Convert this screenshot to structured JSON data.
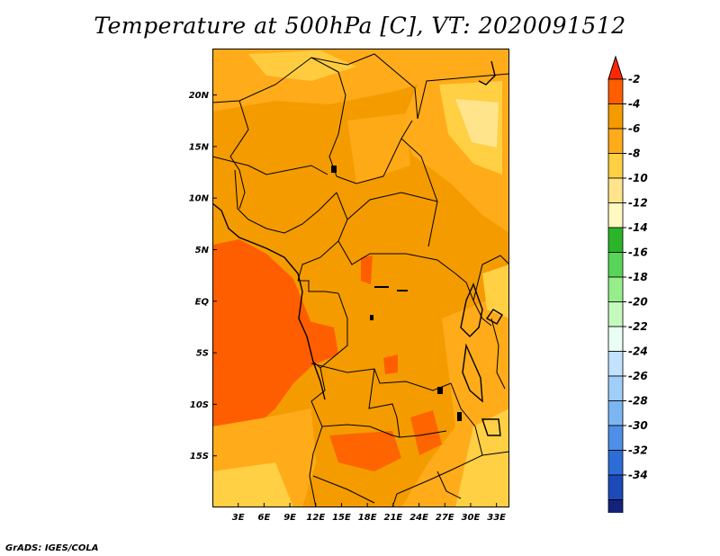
{
  "title": "Temperature at 500hPa [C], VT: 2020091512",
  "credit": "GrADS: IGES/COLA",
  "map": {
    "lon_range": [
      0,
      34.5
    ],
    "lat_range": [
      -20,
      24.5
    ],
    "lon_ticks": [
      "3E",
      "6E",
      "9E",
      "12E",
      "15E",
      "18E",
      "21E",
      "24E",
      "27E",
      "30E",
      "33E"
    ],
    "lat_ticks": [
      "20N",
      "15N",
      "10N",
      "5N",
      "EQ",
      "5S",
      "10S",
      "15S"
    ],
    "lon_tick_values": [
      3,
      6,
      9,
      12,
      15,
      18,
      21,
      24,
      27,
      30,
      33
    ],
    "lat_tick_values": [
      20,
      15,
      10,
      5,
      0,
      -5,
      -10,
      -15
    ]
  },
  "colorbar": {
    "labels": [
      "-2",
      "-4",
      "-6",
      "-8",
      "-10",
      "-12",
      "-14",
      "-16",
      "-18",
      "-20",
      "-22",
      "-24",
      "-26",
      "-28",
      "-30",
      "-32",
      "-34"
    ],
    "colors": [
      "#ff5e00",
      "#f49b00",
      "#ffab1a",
      "#ffcf44",
      "#ffe48c",
      "#fff8c0",
      "#2ab52a",
      "#58d458",
      "#96ee8a",
      "#c5f9be",
      "#eafff3",
      "#c2e2ff",
      "#9fcef8",
      "#7bb6f2",
      "#4f8fe7",
      "#2d6dd8",
      "#1c4ab8",
      "#14237a"
    ],
    "top_arrow_color": "#ff2800",
    "bottom_arrow_color": "#e2e2fa"
  }
}
